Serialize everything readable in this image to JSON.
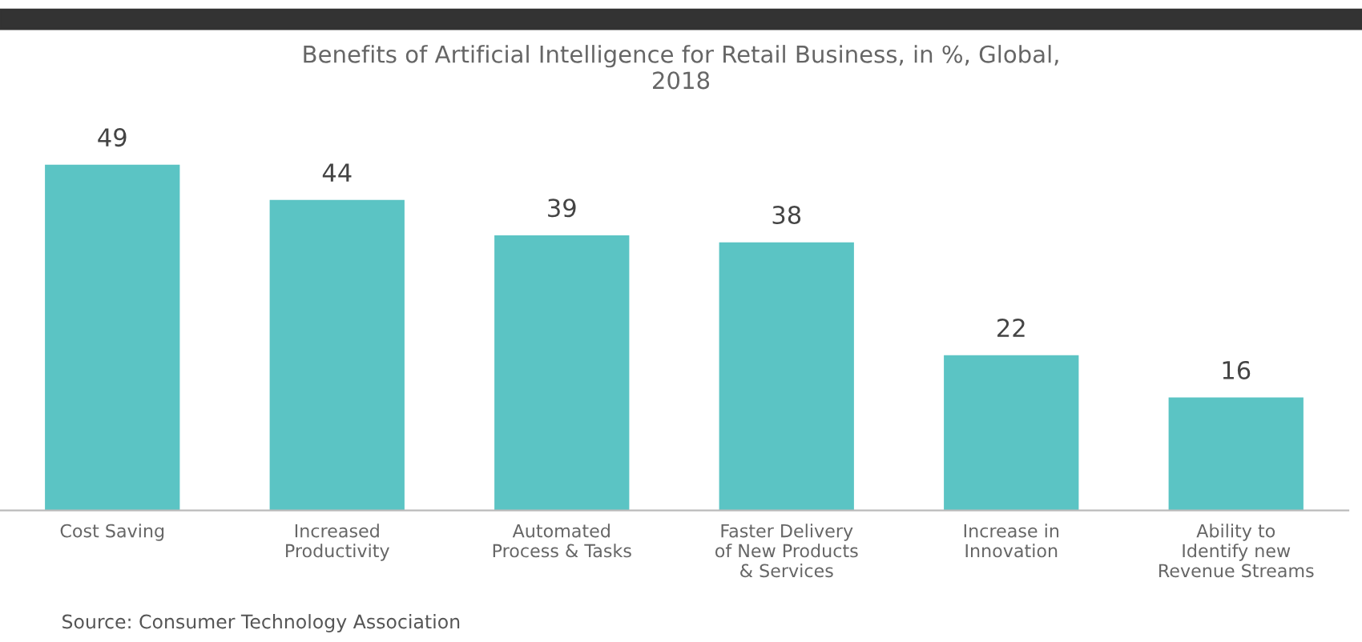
{
  "chart_data": {
    "type": "bar",
    "title": "Benefits of Artificial Intelligence for Retail Business, in %, Global,\n2018",
    "categories": [
      "Cost Saving",
      "Increased\nProductivity",
      "Automated\nProcess & Tasks",
      "Faster Delivery\nof New Products\n& Services",
      "Increase in\nInnovation",
      "Ability to\nIdentify new\nRevenue Streams"
    ],
    "values": [
      49,
      44,
      39,
      38,
      22,
      16
    ],
    "color": "#5bc4c4",
    "data_labels": true,
    "grid": false,
    "annotations": [
      "Source: Consumer Technology Association"
    ]
  }
}
